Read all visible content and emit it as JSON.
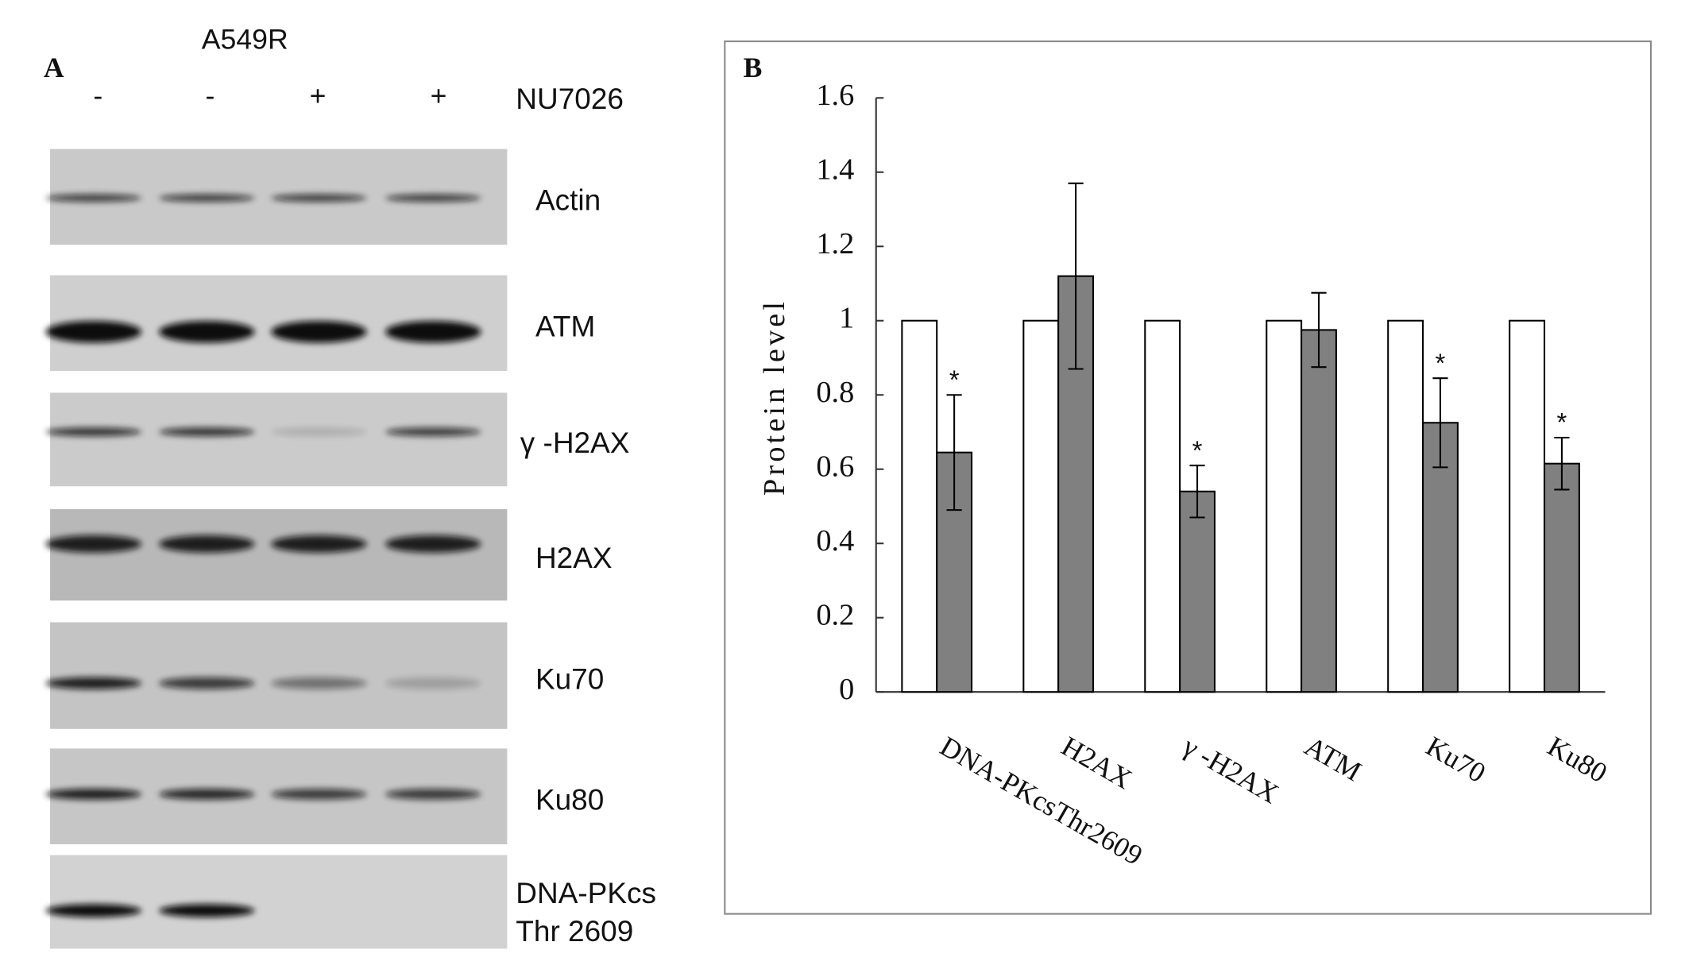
{
  "panel_a": {
    "label": "A",
    "cell_line": "A549R",
    "treatment_label": "NU7026",
    "treatment": [
      "-",
      "-",
      "+",
      "+"
    ],
    "blots": [
      {
        "label": "Actin"
      },
      {
        "label": "ATM"
      },
      {
        "label": "γ -H2AX"
      },
      {
        "label": "H2AX"
      },
      {
        "label": "Ku70"
      },
      {
        "label": "Ku80"
      },
      {
        "label": [
          "DNA-PKcs",
          "Thr 2609"
        ]
      }
    ]
  },
  "chart_data": {
    "type": "bar",
    "panel_label": "B",
    "y_label": "Protein level",
    "categories": [
      "DNA-PKcsThr2609",
      "H2AX",
      "γ -H2AX",
      "ATM",
      "Ku70",
      "Ku80"
    ],
    "series": [
      {
        "color": "#ffffff",
        "values": [
          1,
          1,
          1,
          1,
          1,
          1
        ]
      },
      {
        "color": "#808080",
        "values": [
          0.645,
          1.12,
          0.54,
          0.975,
          0.725,
          0.615
        ],
        "errors": [
          0.155,
          0.25,
          0.07,
          0.1,
          0.12,
          0.07
        ]
      }
    ],
    "significance": [
      "*",
      null,
      "*",
      null,
      "*",
      "*"
    ],
    "ylim": [
      0,
      1.6
    ],
    "yticks": [
      0,
      0.2,
      0.4,
      0.6,
      0.8,
      1,
      1.2,
      1.4,
      1.6
    ]
  }
}
